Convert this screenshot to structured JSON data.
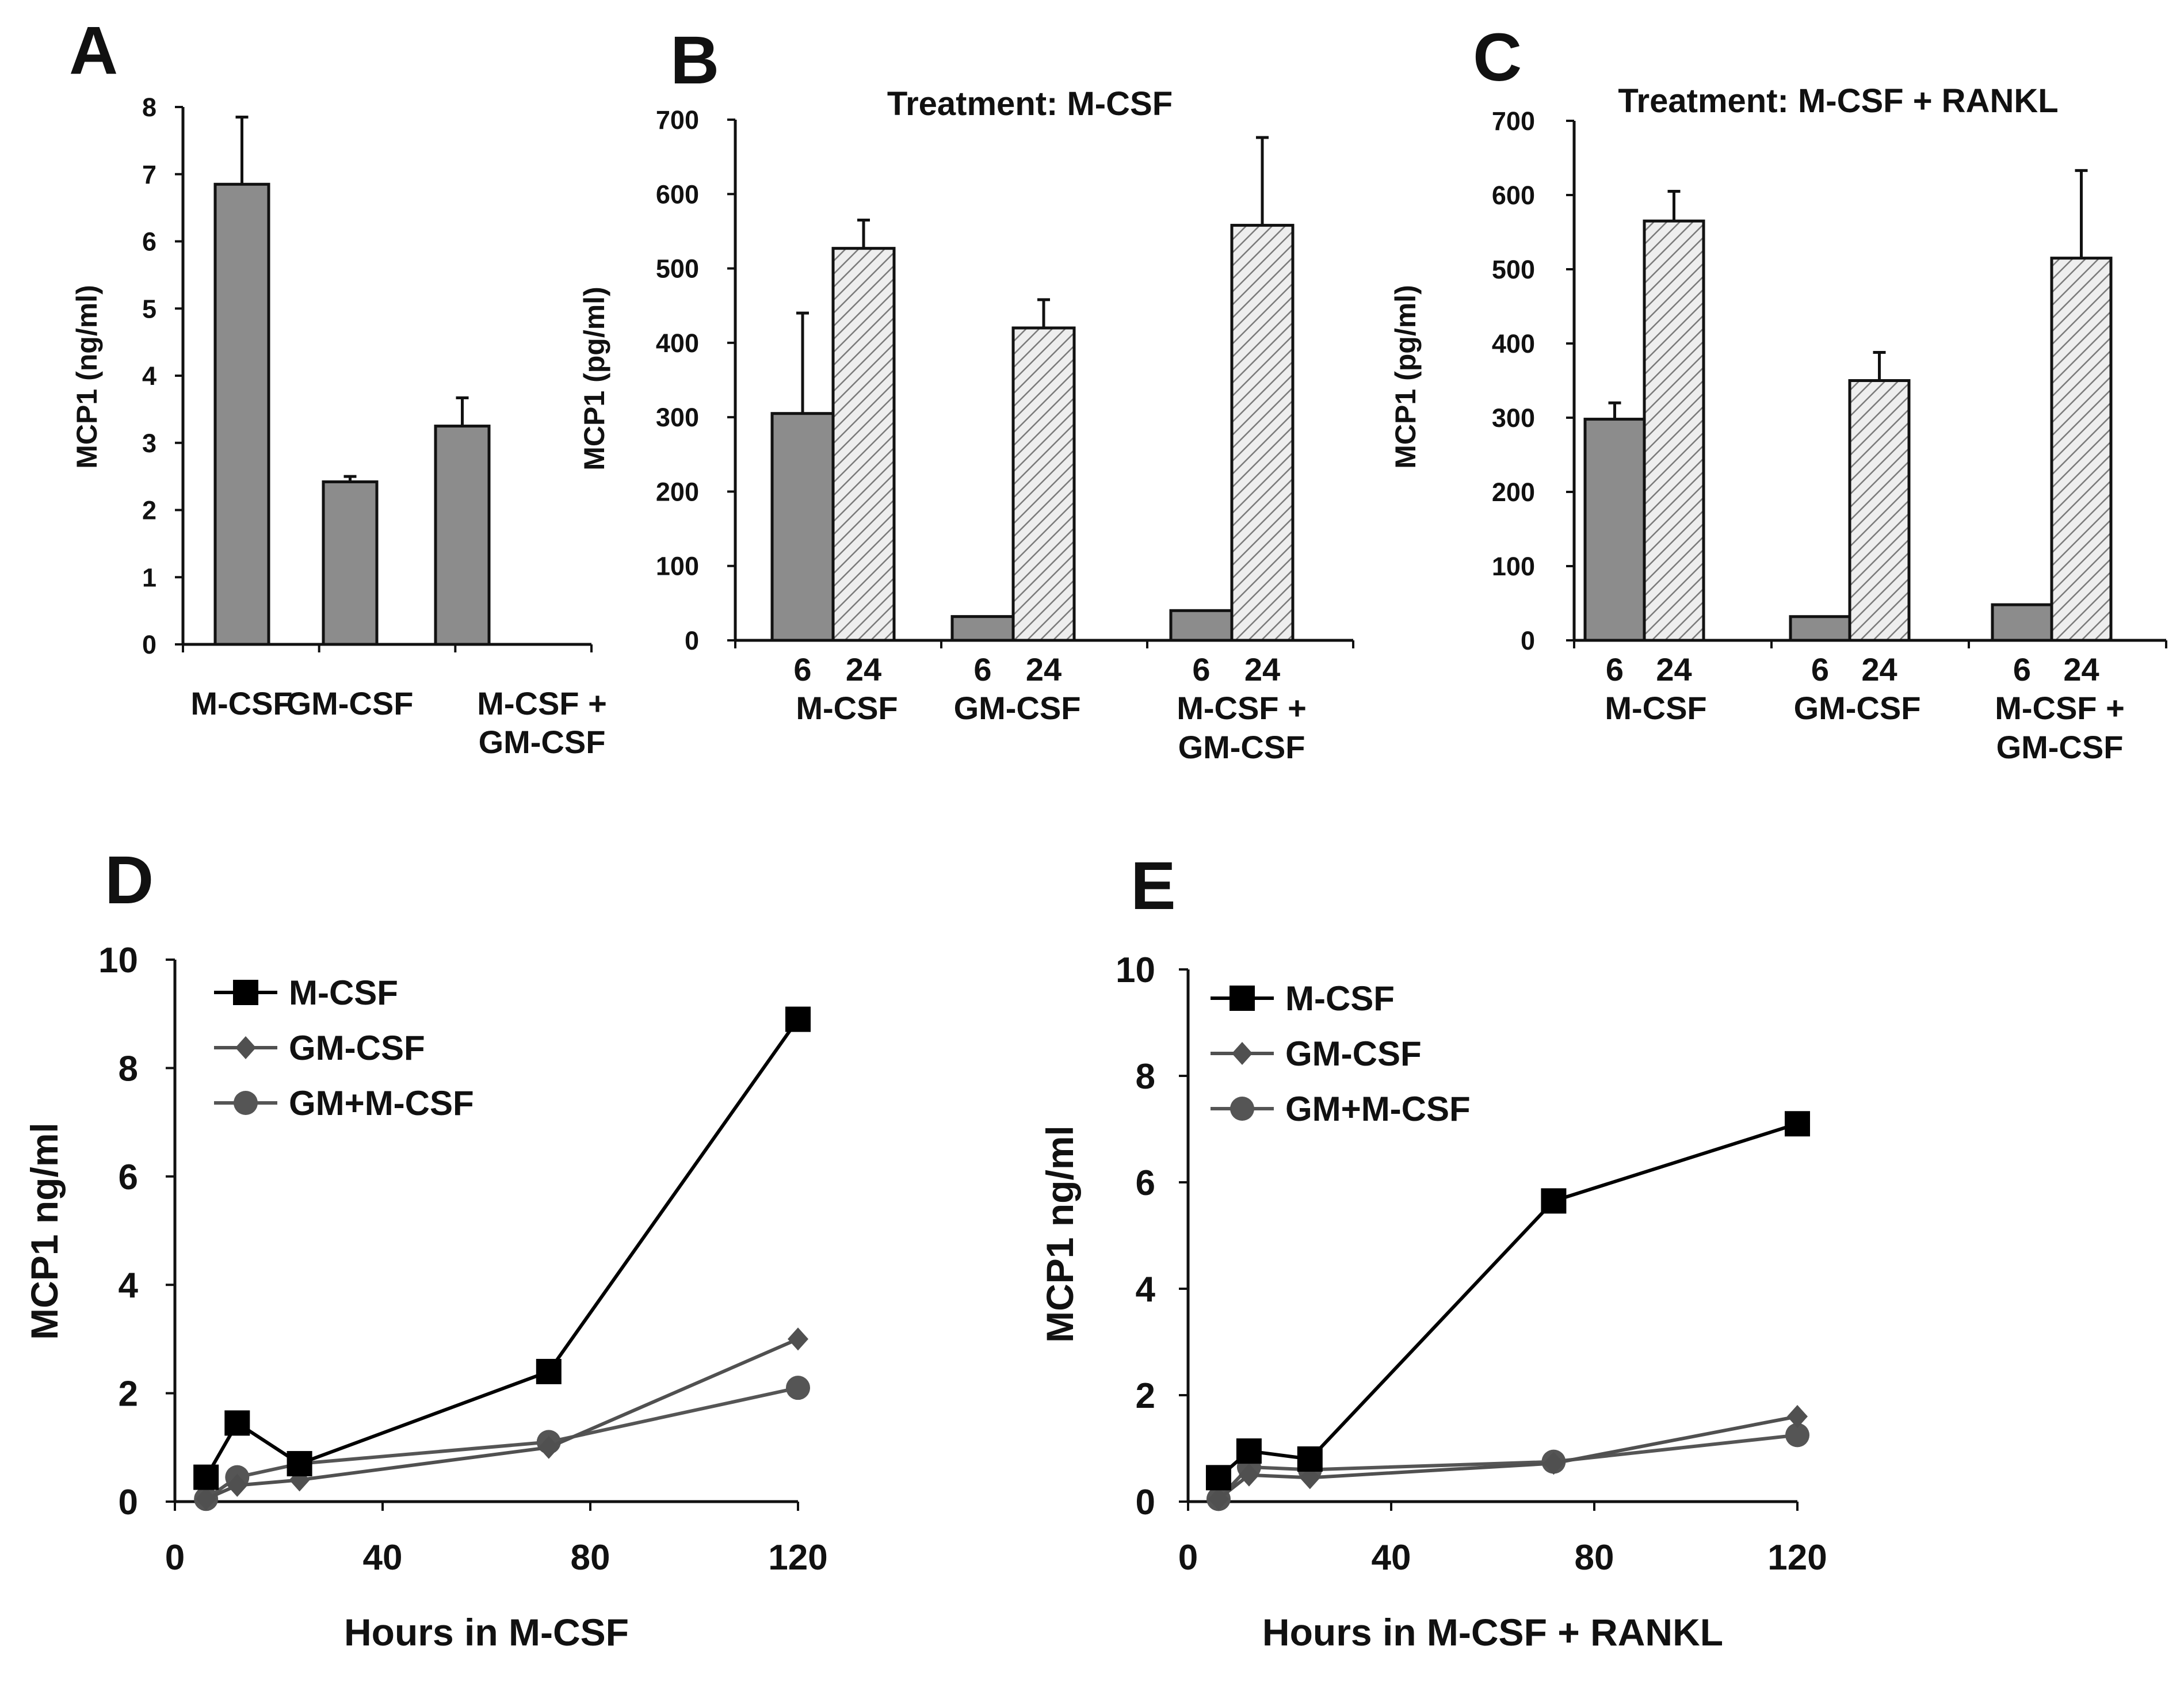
{
  "colors": {
    "bar_dark": "#8c8c8c",
    "bar_hatch_bg": "#eeeeee",
    "hatch_line": "#7a7a7a",
    "series_m_csf": "#000000",
    "series_gm_csf": "#505050",
    "series_gm_m_csf": "#555555"
  },
  "chart_data": [
    {
      "panel": "A",
      "type": "bar",
      "title": "",
      "ylabel": "MCP1 (ng/ml)",
      "ylim": [
        0,
        8
      ],
      "yticks": [
        0,
        1,
        2,
        3,
        4,
        5,
        6,
        7,
        8
      ],
      "categories": [
        [
          "M-CSF"
        ],
        [
          "GM-CSF"
        ],
        [
          "M-CSF +",
          "GM-CSF"
        ]
      ],
      "series": [
        {
          "name": "MCP1",
          "values": [
            6.85,
            2.42,
            3.25
          ],
          "errors": [
            1.0,
            0.08,
            0.42
          ]
        }
      ]
    },
    {
      "panel": "B",
      "type": "bar",
      "title": "Treatment: M-CSF",
      "ylabel": "MCP1 (pg/ml)",
      "ylim": [
        0,
        700
      ],
      "yticks": [
        0,
        100,
        200,
        300,
        400,
        500,
        600,
        700
      ],
      "categories": [
        [
          "M-CSF"
        ],
        [
          "GM-CSF"
        ],
        [
          "M-CSF +",
          "GM-CSF"
        ]
      ],
      "series": [
        {
          "name": "6",
          "values": [
            305,
            32,
            40
          ],
          "errors": [
            135,
            0,
            0
          ]
        },
        {
          "name": "24",
          "values": [
            527,
            420,
            558
          ],
          "errors": [
            38,
            38,
            118
          ]
        }
      ]
    },
    {
      "panel": "C",
      "type": "bar",
      "title": "Treatment: M-CSF + RANKL",
      "ylabel": "MCP1 (pg/ml)",
      "ylim": [
        0,
        700
      ],
      "yticks": [
        0,
        100,
        200,
        300,
        400,
        500,
        600,
        700
      ],
      "categories": [
        [
          "M-CSF"
        ],
        [
          "GM-CSF"
        ],
        [
          "M-CSF +",
          "GM-CSF"
        ]
      ],
      "series": [
        {
          "name": "6",
          "values": [
            298,
            32,
            48
          ],
          "errors": [
            22,
            0,
            0
          ]
        },
        {
          "name": "24",
          "values": [
            565,
            350,
            515
          ],
          "errors": [
            40,
            38,
            118
          ]
        }
      ]
    },
    {
      "panel": "D",
      "type": "line",
      "title": "",
      "xlabel": "Hours in M-CSF",
      "ylabel": "MCP1 ng/ml",
      "xlim": [
        0,
        120
      ],
      "ylim": [
        0,
        10
      ],
      "xticks": [
        0,
        40,
        80,
        120
      ],
      "yticks": [
        0,
        2,
        4,
        6,
        8,
        10
      ],
      "legend_position": "top-left",
      "series": [
        {
          "name": "M-CSF",
          "marker": "square",
          "x": [
            6,
            12,
            24,
            72,
            120
          ],
          "y": [
            0.45,
            1.45,
            0.7,
            2.4,
            8.9
          ]
        },
        {
          "name": "GM-CSF",
          "marker": "diamond",
          "x": [
            6,
            12,
            24,
            72,
            120
          ],
          "y": [
            0.05,
            0.3,
            0.4,
            1.0,
            3.0
          ]
        },
        {
          "name": "GM+M-CSF",
          "marker": "circle",
          "x": [
            6,
            12,
            24,
            72,
            120
          ],
          "y": [
            0.05,
            0.45,
            0.7,
            1.1,
            2.1
          ]
        }
      ]
    },
    {
      "panel": "E",
      "type": "line",
      "title": "",
      "xlabel": "Hours in M-CSF + RANKL",
      "ylabel": "MCP1 ng/ml",
      "xlim": [
        0,
        120
      ],
      "ylim": [
        0,
        10
      ],
      "xticks": [
        0,
        40,
        80,
        120
      ],
      "yticks": [
        0,
        2,
        4,
        6,
        8,
        10
      ],
      "legend_position": "top-left",
      "series": [
        {
          "name": "M-CSF",
          "marker": "square",
          "x": [
            6,
            12,
            24,
            72,
            120
          ],
          "y": [
            0.45,
            0.95,
            0.8,
            5.65,
            7.1
          ]
        },
        {
          "name": "GM-CSF",
          "marker": "diamond",
          "x": [
            6,
            12,
            24,
            72,
            120
          ],
          "y": [
            0.05,
            0.5,
            0.45,
            0.72,
            1.6
          ]
        },
        {
          "name": "GM+M-CSF",
          "marker": "circle",
          "x": [
            6,
            12,
            24,
            72,
            120
          ],
          "y": [
            0.05,
            0.65,
            0.6,
            0.75,
            1.25
          ]
        }
      ]
    }
  ]
}
